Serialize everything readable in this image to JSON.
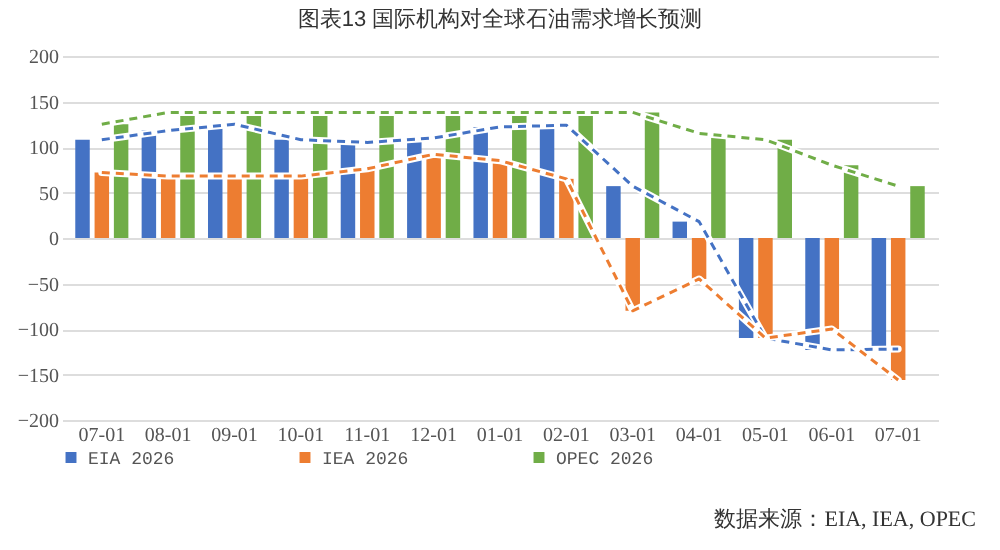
{
  "chart_data": {
    "type": "bar",
    "title": "图表13  国际机构对全球石油需求增长预测",
    "categories": [
      "07-01",
      "08-01",
      "09-01",
      "10-01",
      "11-01",
      "12-01",
      "01-01",
      "02-01",
      "03-01",
      "04-01",
      "05-01",
      "06-01",
      "07-01"
    ],
    "series": [
      {
        "name": "EIA 2026",
        "color": "#4472c4",
        "values": [
          108,
          118,
          125,
          108,
          105,
          110,
          122,
          124,
          57,
          18,
          -110,
          -123,
          -122
        ]
      },
      {
        "name": "IEA 2026",
        "color": "#ed7d31",
        "values": [
          72,
          68,
          68,
          68,
          76,
          92,
          85,
          65,
          -80,
          -45,
          -110,
          -100,
          -156
        ]
      },
      {
        "name": "OPEC 2026",
        "color": "#70ad47",
        "values": [
          125,
          138,
          138,
          138,
          138,
          138,
          138,
          138,
          138,
          115,
          108,
          80,
          57
        ]
      },
      {
        "type": "line",
        "line_style": "dashed",
        "color": "#4472c4",
        "values": [
          108,
          118,
          125,
          108,
          105,
          110,
          122,
          124,
          57,
          18,
          -110,
          -123,
          -122
        ]
      },
      {
        "type": "line",
        "line_style": "dashed",
        "color": "#ed7d31",
        "values": [
          72,
          68,
          68,
          68,
          76,
          92,
          85,
          65,
          -80,
          -45,
          -110,
          -100,
          -156
        ]
      },
      {
        "type": "line",
        "line_style": "dashed",
        "color": "#70ad47",
        "values": [
          125,
          138,
          138,
          138,
          138,
          138,
          138,
          138,
          138,
          115,
          108,
          80,
          57
        ]
      }
    ],
    "ylim": [
      -200,
      200
    ],
    "yticks": [
      -200,
      -150,
      -100,
      -50,
      0,
      50,
      100,
      150,
      200
    ],
    "grid": "y",
    "legend": "bottom",
    "annotations": [
      "数据来源：EIA, IEA, OPEC"
    ]
  }
}
